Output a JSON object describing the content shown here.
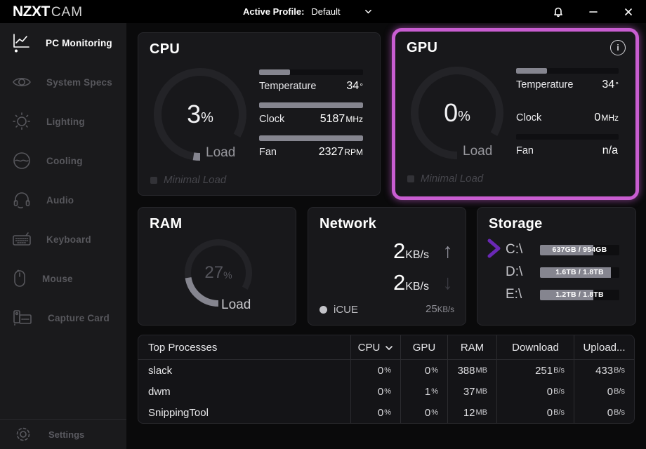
{
  "colors": {
    "magenta": "#c85dd1",
    "purple": "#6a28b5",
    "bar-fill": "#85858f",
    "gauge-track": "#232327"
  },
  "titlebar": {
    "logo_primary": "NZXT",
    "logo_secondary": "CAM",
    "profile_label": "Active Profile:",
    "profile_value": "Default"
  },
  "sidebar": {
    "items": [
      {
        "label": "PC Monitoring"
      },
      {
        "label": "System Specs"
      },
      {
        "label": "Lighting"
      },
      {
        "label": "Cooling"
      },
      {
        "label": "Audio"
      },
      {
        "label": "Keyboard"
      },
      {
        "label": "Mouse"
      },
      {
        "label": "Capture Card"
      }
    ],
    "settings_label": "Settings"
  },
  "cards": {
    "cpu": {
      "title": "CPU",
      "load_pct": 3,
      "load_value": "3",
      "load_unit": "%",
      "load_label": "Load",
      "status_label": "Minimal Load",
      "stats": [
        {
          "label": "Temperature",
          "value": "34",
          "unit": "°",
          "bar_pct": 30
        },
        {
          "label": "Clock",
          "value": "5187",
          "unit": "MHz",
          "bar_pct": 100
        },
        {
          "label": "Fan",
          "value": "2327",
          "unit": "RPM",
          "bar_pct": 100
        }
      ]
    },
    "gpu": {
      "title": "GPU",
      "info_icon": "i",
      "load_pct": 0,
      "load_value": "0",
      "load_unit": "%",
      "load_label": "Load",
      "status_label": "Minimal Load",
      "stats": [
        {
          "label": "Temperature",
          "value": "34",
          "unit": "°",
          "bar_pct": 30
        },
        {
          "label": "Clock",
          "value": "0",
          "unit": "MHz",
          "bar_pct": 0
        },
        {
          "label": "Fan",
          "value": "n/a",
          "unit": "",
          "bar_pct": 0
        }
      ]
    },
    "ram": {
      "title": "RAM",
      "load_pct": 27,
      "load_value": "27",
      "load_unit": "%",
      "load_label": "Load"
    },
    "network": {
      "title": "Network",
      "up_value": "2",
      "up_unit": "KB/s",
      "down_value": "2",
      "down_unit": "KB/s",
      "device_label": "iCUE",
      "total_value": "25",
      "total_unit": "KB/s"
    },
    "storage": {
      "title": "Storage",
      "drives": [
        {
          "name": "C:\\",
          "usage": "637GB / 954GB",
          "pct": 67
        },
        {
          "name": "D:\\",
          "usage": "1.6TB / 1.8TB",
          "pct": 89
        },
        {
          "name": "E:\\",
          "usage": "1.2TB / 1.8TB",
          "pct": 67
        }
      ]
    }
  },
  "processes": {
    "headers": {
      "name": "Top Processes",
      "cpu": "CPU",
      "gpu": "GPU",
      "ram": "RAM",
      "download": "Download",
      "upload": "Upload..."
    },
    "rows": [
      {
        "name": "slack",
        "cpu": "0",
        "cpu_u": "%",
        "gpu": "0",
        "gpu_u": "%",
        "ram": "388",
        "ram_u": "MB",
        "down": "251",
        "down_u": "B/s",
        "up": "433",
        "up_u": "B/s"
      },
      {
        "name": "dwm",
        "cpu": "0",
        "cpu_u": "%",
        "gpu": "1",
        "gpu_u": "%",
        "ram": "37",
        "ram_u": "MB",
        "down": "0",
        "down_u": "B/s",
        "up": "0",
        "up_u": "B/s"
      },
      {
        "name": "SnippingTool",
        "cpu": "0",
        "cpu_u": "%",
        "gpu": "0",
        "gpu_u": "%",
        "ram": "12",
        "ram_u": "MB",
        "down": "0",
        "down_u": "B/s",
        "up": "0",
        "up_u": "B/s"
      }
    ]
  }
}
